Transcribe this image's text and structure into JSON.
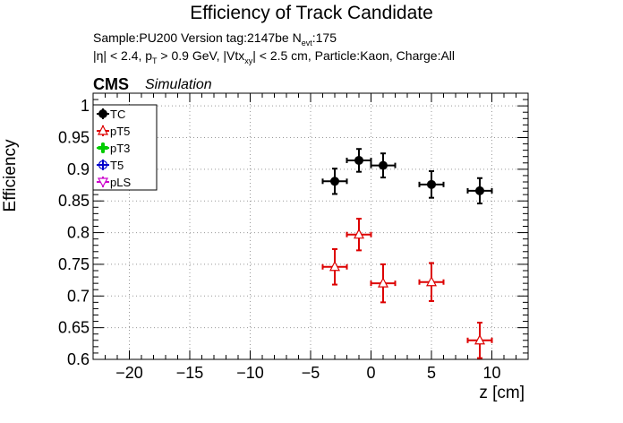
{
  "header": {
    "title": "Efficiency of Track Candidate",
    "sample_line_prefix": "Sample:PU200   Version tag:2147be  N",
    "sample_line_sub": "evt",
    "sample_line_suffix": ":175",
    "cut_eta": "|η| < 2.4, p",
    "cut_pt_sub": "T",
    "cut_pt_rest": " > 0.9 GeV, |Vtx",
    "cut_vtx_sub": "xy",
    "cut_rest": "| < 2.5 cm, Particle:Kaon, Charge:All",
    "cms": "CMS",
    "simulation": "Simulation"
  },
  "chart_data": {
    "type": "scatter",
    "title": "Efficiency of Track Candidate",
    "xlabel": "z [cm]",
    "ylabel": "Efficiency",
    "xlim": [
      -23,
      13
    ],
    "ylim": [
      0.6,
      1.02
    ],
    "x_ticks": [
      -20,
      -15,
      -10,
      -5,
      0,
      5,
      10
    ],
    "x_tick_labels": [
      "−20",
      "−15",
      "−10",
      "−5",
      "0",
      "5",
      "10"
    ],
    "y_ticks": [
      0.6,
      0.65,
      0.7,
      0.75,
      0.8,
      0.85,
      0.9,
      0.95,
      1.0
    ],
    "y_tick_labels": [
      "0.6",
      "0.65",
      "0.7",
      "0.75",
      "0.8",
      "0.85",
      "0.9",
      "0.95",
      "1"
    ],
    "grid": true,
    "legend_position": "top-left",
    "series": [
      {
        "name": "TC",
        "color": "#000000",
        "marker": "filled-circle",
        "points": [
          {
            "x": -3,
            "xerr": 1,
            "y": 0.881,
            "yerr": 0.02
          },
          {
            "x": -1,
            "xerr": 1,
            "y": 0.914,
            "yerr": 0.018
          },
          {
            "x": 1,
            "xerr": 1,
            "y": 0.906,
            "yerr": 0.019
          },
          {
            "x": 5,
            "xerr": 1,
            "y": 0.876,
            "yerr": 0.021
          },
          {
            "x": 9,
            "xerr": 1,
            "y": 0.866,
            "yerr": 0.02
          }
        ]
      },
      {
        "name": "pT5",
        "color": "#dd0000",
        "marker": "open-triangle",
        "points": [
          {
            "x": -3,
            "xerr": 1,
            "y": 0.746,
            "yerr": 0.028
          },
          {
            "x": -1,
            "xerr": 1,
            "y": 0.797,
            "yerr": 0.025
          },
          {
            "x": 1,
            "xerr": 1,
            "y": 0.72,
            "yerr": 0.03
          },
          {
            "x": 5,
            "xerr": 1,
            "y": 0.722,
            "yerr": 0.03
          },
          {
            "x": 9,
            "xerr": 1,
            "y": 0.63,
            "yerr": 0.028
          }
        ]
      },
      {
        "name": "pT3",
        "color": "#00cc00",
        "marker": "open-cross",
        "points": []
      },
      {
        "name": "T5",
        "color": "#0000cc",
        "marker": "open-circle",
        "points": []
      },
      {
        "name": "pLS",
        "color": "#cc00cc",
        "marker": "open-triangle-down",
        "points": []
      }
    ]
  }
}
